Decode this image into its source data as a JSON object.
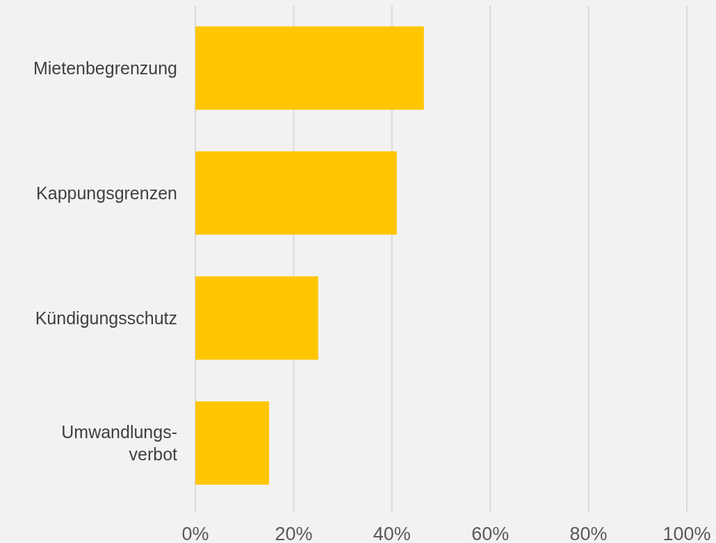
{
  "chart_data": {
    "type": "bar",
    "orientation": "horizontal",
    "categories": [
      "Mietenbegrenzung",
      "Kappungsgrenzen",
      "Kündigungsschutz",
      "Umwandlungs-\nverbot"
    ],
    "values": [
      46.5,
      41,
      25,
      15
    ],
    "color": "#ffc600",
    "xlim": [
      0,
      100
    ],
    "xticks": [
      {
        "value": 0,
        "label": "0%"
      },
      {
        "value": 20,
        "label": "20%"
      },
      {
        "value": 40,
        "label": "40%"
      },
      {
        "value": 60,
        "label": "60%"
      },
      {
        "value": 80,
        "label": "80%"
      },
      {
        "value": 100,
        "label": "100%"
      }
    ],
    "grid": "x"
  }
}
